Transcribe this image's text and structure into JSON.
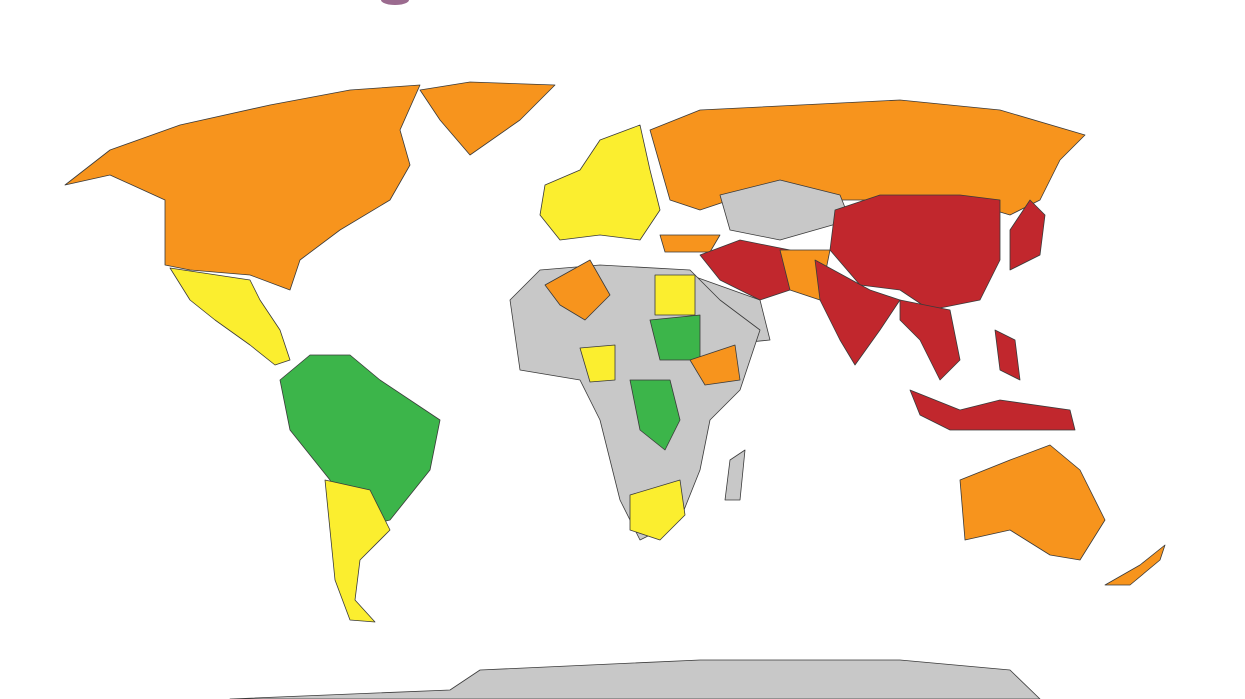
{
  "palette": {
    "orange": "#f7941d",
    "yellow": "#fbee2f",
    "green": "#3cb54a",
    "red": "#c1272d",
    "gray": "#c8c8c8",
    "title_accent": "#9b6b8f"
  },
  "regions": [
    {
      "id": "north-america",
      "category": "orange"
    },
    {
      "id": "greenland",
      "category": "orange"
    },
    {
      "id": "mexico-central-america",
      "category": "yellow"
    },
    {
      "id": "south-america-north",
      "category": "green"
    },
    {
      "id": "south-america-south",
      "category": "yellow"
    },
    {
      "id": "europe",
      "category": "yellow"
    },
    {
      "id": "russia",
      "category": "orange"
    },
    {
      "id": "central-asia",
      "category": "gray"
    },
    {
      "id": "turkey",
      "category": "orange"
    },
    {
      "id": "iran-pakistan",
      "category": "red"
    },
    {
      "id": "afghanistan",
      "category": "orange"
    },
    {
      "id": "arabia",
      "category": "gray"
    },
    {
      "id": "china",
      "category": "red"
    },
    {
      "id": "india",
      "category": "red"
    },
    {
      "id": "southeast-asia",
      "category": "red"
    },
    {
      "id": "indonesia",
      "category": "red"
    },
    {
      "id": "philippines",
      "category": "red"
    },
    {
      "id": "japan",
      "category": "red"
    },
    {
      "id": "australia",
      "category": "orange"
    },
    {
      "id": "new-zealand",
      "category": "orange"
    },
    {
      "id": "africa",
      "category": "gray"
    },
    {
      "id": "algeria",
      "category": "orange"
    },
    {
      "id": "egypt",
      "category": "yellow"
    },
    {
      "id": "sudan",
      "category": "green"
    },
    {
      "id": "ethiopia",
      "category": "orange"
    },
    {
      "id": "nigeria",
      "category": "yellow"
    },
    {
      "id": "dr-congo",
      "category": "green"
    },
    {
      "id": "south-africa",
      "category": "yellow"
    },
    {
      "id": "madagascar",
      "category": "gray"
    },
    {
      "id": "antarctica",
      "category": "gray"
    }
  ]
}
